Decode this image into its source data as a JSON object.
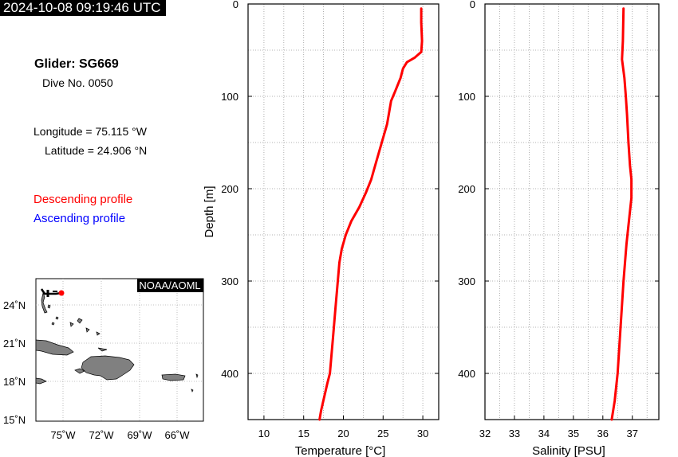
{
  "header": {
    "timestamp": "2024-10-08 09:19:46 UTC"
  },
  "info": {
    "glider": "Glider: SG669",
    "dive": "Dive No. 0050",
    "longitude": "Longitude = 75.115 °W",
    "latitude": "Latitude = 24.906 °N"
  },
  "legend": {
    "descending": "Descending profile",
    "ascending": "Ascending profile",
    "descending_color": "#ff0000",
    "ascending_color": "#0000ff"
  },
  "map": {
    "credit": "NOAA/AOML",
    "lat_labels": [
      "24˚N",
      "21˚N",
      "18˚N",
      "15˚N"
    ],
    "lon_labels": [
      "75˚W",
      "72˚W",
      "69˚W",
      "66˚W"
    ],
    "land_color": "#808080",
    "marker_color": "#ff0000"
  },
  "chart_data": [
    {
      "type": "line",
      "xlabel": "Temperature [°C]",
      "ylabel": "Depth [m]",
      "xlim": [
        8,
        32
      ],
      "ylim": [
        0,
        450
      ],
      "y_inverted": true,
      "grid": true,
      "xticks": [
        10,
        15,
        20,
        25,
        30
      ],
      "yticks": [
        0,
        100,
        200,
        300,
        400
      ],
      "series": [
        {
          "color": "#ff0000",
          "points": [
            [
              29.8,
              5
            ],
            [
              29.8,
              20
            ],
            [
              29.9,
              40
            ],
            [
              29.8,
              52
            ],
            [
              29.0,
              58
            ],
            [
              28.0,
              63
            ],
            [
              27.5,
              70
            ],
            [
              27.2,
              80
            ],
            [
              26.5,
              95
            ],
            [
              26.0,
              105
            ],
            [
              25.7,
              120
            ],
            [
              25.5,
              130
            ],
            [
              25.0,
              145
            ],
            [
              24.5,
              160
            ],
            [
              24.0,
              175
            ],
            [
              23.5,
              190
            ],
            [
              22.8,
              205
            ],
            [
              22.0,
              220
            ],
            [
              21.0,
              235
            ],
            [
              20.3,
              250
            ],
            [
              19.8,
              265
            ],
            [
              19.5,
              280
            ],
            [
              19.3,
              300
            ],
            [
              19.0,
              330
            ],
            [
              18.7,
              360
            ],
            [
              18.5,
              380
            ],
            [
              18.3,
              400
            ],
            [
              18.0,
              410
            ],
            [
              17.6,
              425
            ],
            [
              17.2,
              440
            ],
            [
              17.0,
              450
            ]
          ]
        }
      ]
    },
    {
      "type": "line",
      "xlabel": "Salinity [PSU]",
      "ylabel": "",
      "xlim": [
        32,
        37.9
      ],
      "ylim": [
        0,
        450
      ],
      "y_inverted": true,
      "grid": true,
      "xticks": [
        32,
        33,
        34,
        35,
        36,
        37
      ],
      "yticks": [
        0,
        100,
        200,
        300,
        400
      ],
      "series": [
        {
          "color": "#ff0000",
          "points": [
            [
              36.7,
              5
            ],
            [
              36.68,
              40
            ],
            [
              36.65,
              60
            ],
            [
              36.73,
              80
            ],
            [
              36.78,
              100
            ],
            [
              36.82,
              120
            ],
            [
              36.87,
              150
            ],
            [
              36.92,
              175
            ],
            [
              36.97,
              190
            ],
            [
              36.97,
              210
            ],
            [
              36.9,
              230
            ],
            [
              36.8,
              260
            ],
            [
              36.7,
              300
            ],
            [
              36.6,
              350
            ],
            [
              36.5,
              400
            ],
            [
              36.4,
              430
            ],
            [
              36.3,
              450
            ]
          ]
        }
      ]
    }
  ]
}
